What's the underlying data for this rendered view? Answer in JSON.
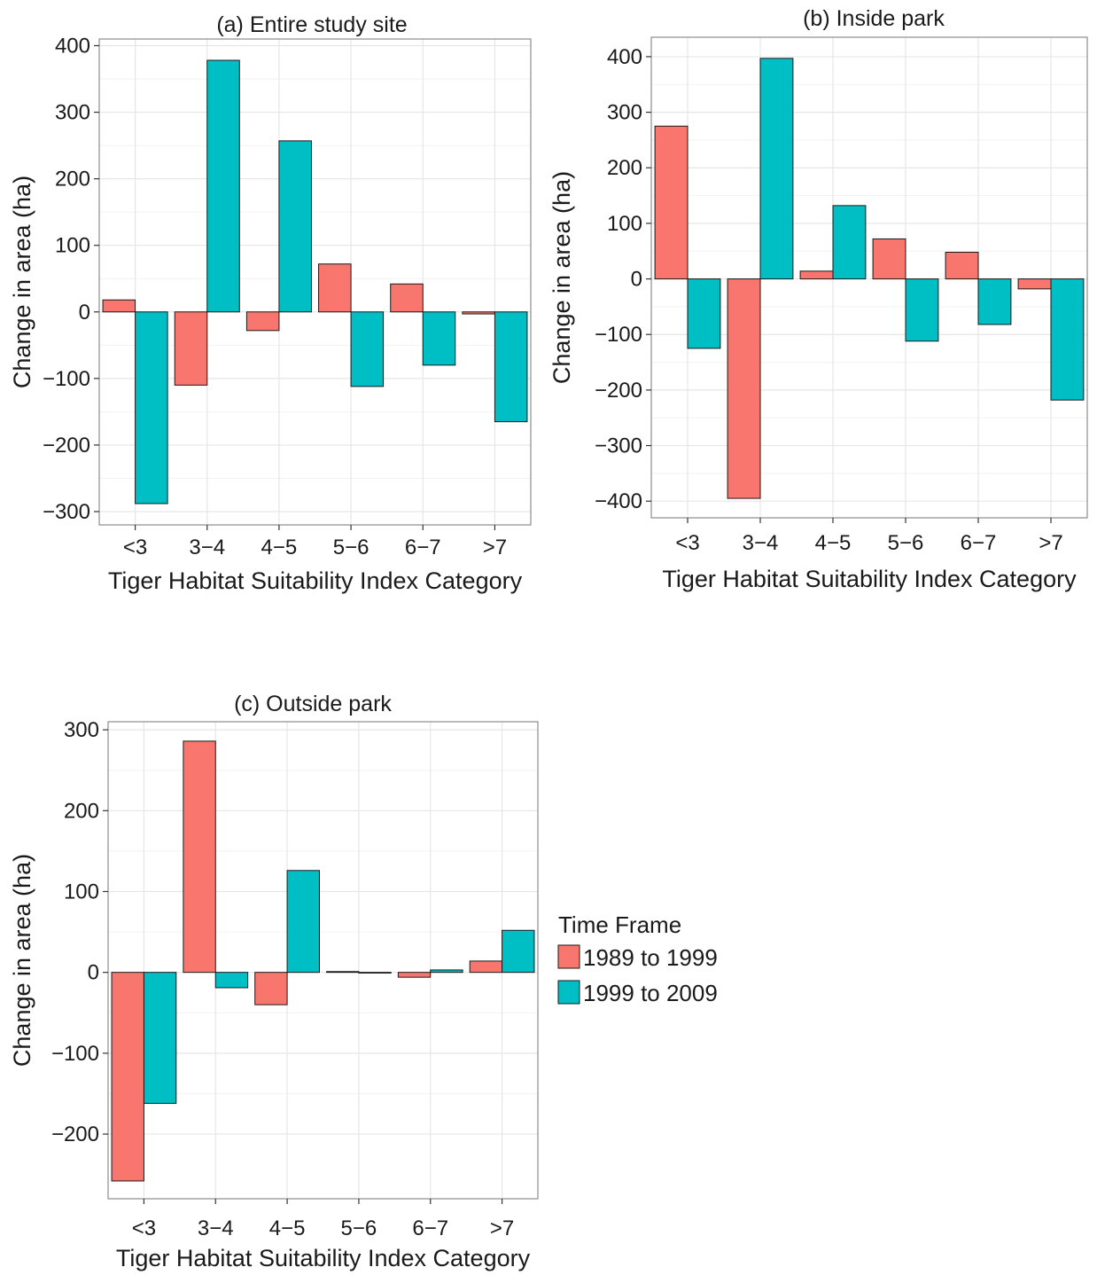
{
  "chart_data": [
    {
      "type": "bar",
      "title": "(a) Entire study site",
      "xlabel": "Tiger Habitat Suitability Index Category",
      "ylabel": "Change in area (ha)",
      "categories": [
        "<3",
        "3−4",
        "4−5",
        "5−6",
        "6−7",
        ">7"
      ],
      "ylim": [
        -320,
        410
      ],
      "yticks": [
        -300,
        -200,
        -100,
        0,
        100,
        200,
        300,
        400
      ],
      "ytick_labels": [
        "−300",
        "−200",
        "−100",
        "0",
        "100",
        "200",
        "300",
        "400"
      ],
      "grid": true,
      "series": [
        {
          "name": "1989 to 1999",
          "color": "#F8766D",
          "values": [
            18,
            -110,
            -28,
            72,
            42,
            -3
          ]
        },
        {
          "name": "1999 to 2009",
          "color": "#00BFC4",
          "values": [
            -288,
            378,
            257,
            -112,
            -80,
            -165
          ]
        }
      ]
    },
    {
      "type": "bar",
      "title": "(b) Inside park",
      "xlabel": "Tiger Habitat Suitability Index Category",
      "ylabel": "Change in area (ha)",
      "categories": [
        "<3",
        "3−4",
        "4−5",
        "5−6",
        "6−7",
        ">7"
      ],
      "ylim": [
        -430,
        435
      ],
      "yticks": [
        -400,
        -300,
        -200,
        -100,
        0,
        100,
        200,
        300,
        400
      ],
      "ytick_labels": [
        "−400",
        "−300",
        "−200",
        "−100",
        "0",
        "100",
        "200",
        "300",
        "400"
      ],
      "grid": true,
      "series": [
        {
          "name": "1989 to 1999",
          "color": "#F8766D",
          "values": [
            275,
            -395,
            14,
            72,
            48,
            -18
          ]
        },
        {
          "name": "1999 to 2009",
          "color": "#00BFC4",
          "values": [
            -125,
            397,
            132,
            -112,
            -82,
            -218
          ]
        }
      ]
    },
    {
      "type": "bar",
      "title": "(c) Outside park",
      "xlabel": "Tiger Habitat Suitability Index Category",
      "ylabel": "Change in area (ha)",
      "categories": [
        "<3",
        "3−4",
        "4−5",
        "5−6",
        "6−7",
        ">7"
      ],
      "ylim": [
        -280,
        310
      ],
      "yticks": [
        -200,
        -100,
        0,
        100,
        200,
        300
      ],
      "ytick_labels": [
        "−200",
        "−100",
        "0",
        "100",
        "200",
        "300"
      ],
      "grid": true,
      "series": [
        {
          "name": "1989 to 1999",
          "color": "#F8766D",
          "values": [
            -258,
            286,
            -40,
            1,
            -6,
            14
          ]
        },
        {
          "name": "1999 to 2009",
          "color": "#00BFC4",
          "values": [
            -162,
            -19,
            126,
            0,
            3,
            52
          ]
        }
      ]
    }
  ],
  "legend": {
    "title": "Time Frame",
    "position": "right of panel (c)",
    "items": [
      {
        "label": "1989 to 1999",
        "color": "#F8766D"
      },
      {
        "label": "1999 to 2009",
        "color": "#00BFC4"
      }
    ]
  }
}
